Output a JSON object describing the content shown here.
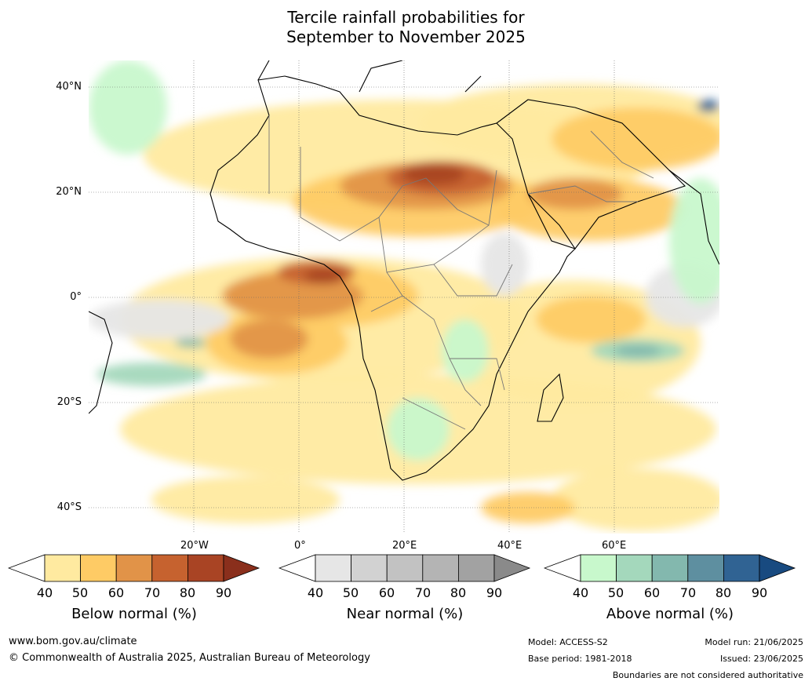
{
  "title": {
    "line1": "Tercile rainfall probabilities for",
    "line2": "September to November 2025"
  },
  "map": {
    "lat_labels": [
      "40°N",
      "20°N",
      "0°",
      "20°S",
      "40°S"
    ],
    "lon_labels": [
      "20°W",
      "0°",
      "20°E",
      "40°E",
      "60°E"
    ],
    "colors": {
      "below": [
        "#ffeaa0",
        "#fecb65",
        "#e19348",
        "#c6622f",
        "#a94424",
        "#8a2f1c"
      ],
      "near": [
        "#e6e6e6",
        "#d2d2d2",
        "#c2c2c2",
        "#b4b4b4",
        "#a2a2a2",
        "#8a8a8a"
      ],
      "above": [
        "#c8f8cc",
        "#a4d8bc",
        "#83b8ae",
        "#5e8fa0",
        "#306393",
        "#184a80"
      ]
    }
  },
  "colorbars": [
    {
      "label": "Below normal (%)",
      "ticks": [
        "40",
        "50",
        "60",
        "70",
        "80",
        "90"
      ]
    },
    {
      "label": "Near normal (%)",
      "ticks": [
        "40",
        "50",
        "60",
        "70",
        "80",
        "90"
      ]
    },
    {
      "label": "Above normal (%)",
      "ticks": [
        "40",
        "50",
        "60",
        "70",
        "80",
        "90"
      ]
    }
  ],
  "footer": {
    "website": "www.bom.gov.au/climate",
    "copyright": "© Commonwealth of Australia 2025, Australian Bureau of Meteorology",
    "model": "Model: ACCESS-S2",
    "base_period": "Base period: 1981-2018",
    "model_run": "Model run: 21/06/2025",
    "issued": "Issued: 23/06/2025",
    "disclaimer": "Boundaries are not considered authoritative"
  }
}
